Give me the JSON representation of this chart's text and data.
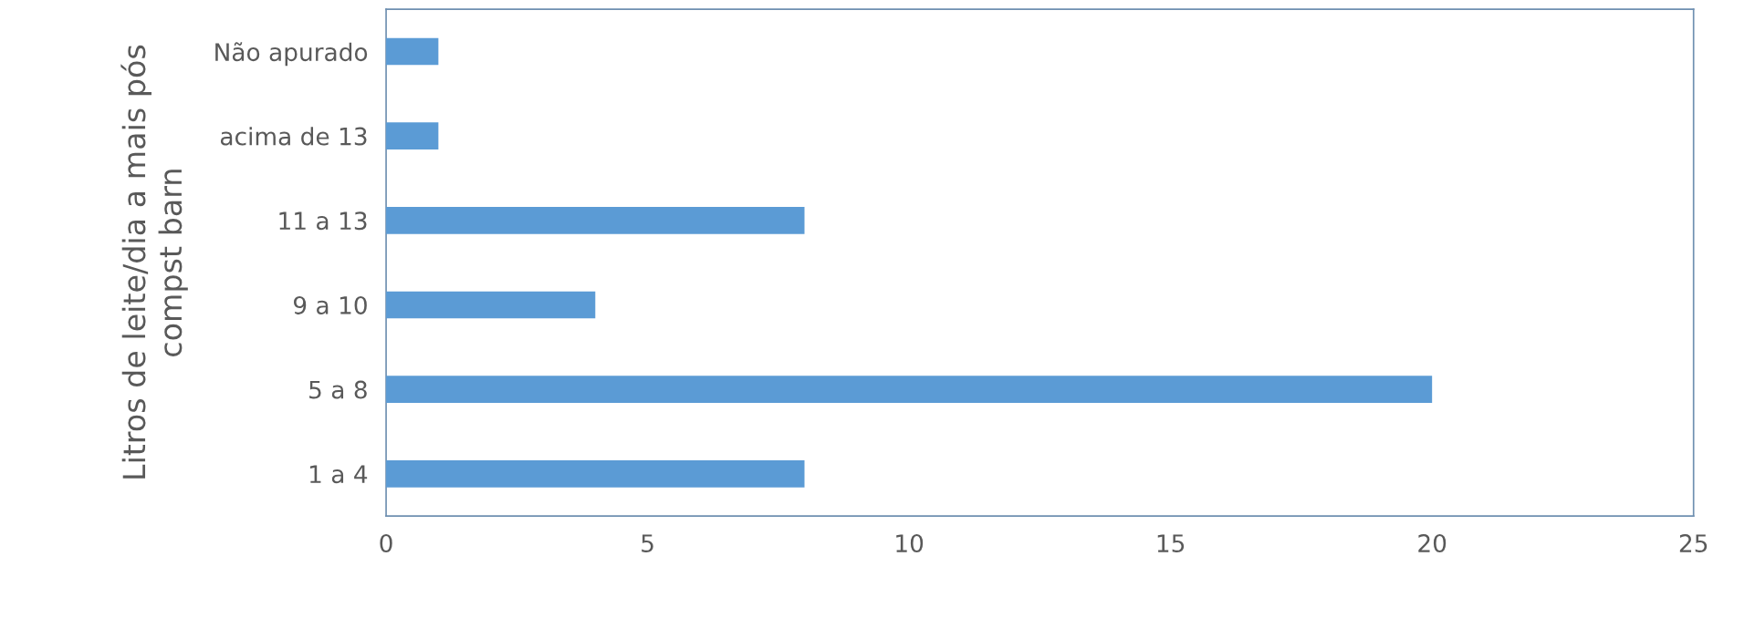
{
  "chart_data": {
    "type": "bar",
    "orientation": "horizontal",
    "ylabel": "Litros de leite/dia a mais pós\ncompst barn",
    "categories": [
      "Não apurado",
      "acima de 13",
      "11 a 13",
      "9 a 10",
      "5 a 8",
      "1 a 4"
    ],
    "values": [
      1,
      1,
      8,
      4,
      20,
      8
    ],
    "color": "#5b9bd5",
    "xlim": [
      0,
      25
    ],
    "xticks": [
      0,
      5,
      10,
      15,
      20,
      25
    ],
    "grid": false,
    "legend": false
  }
}
